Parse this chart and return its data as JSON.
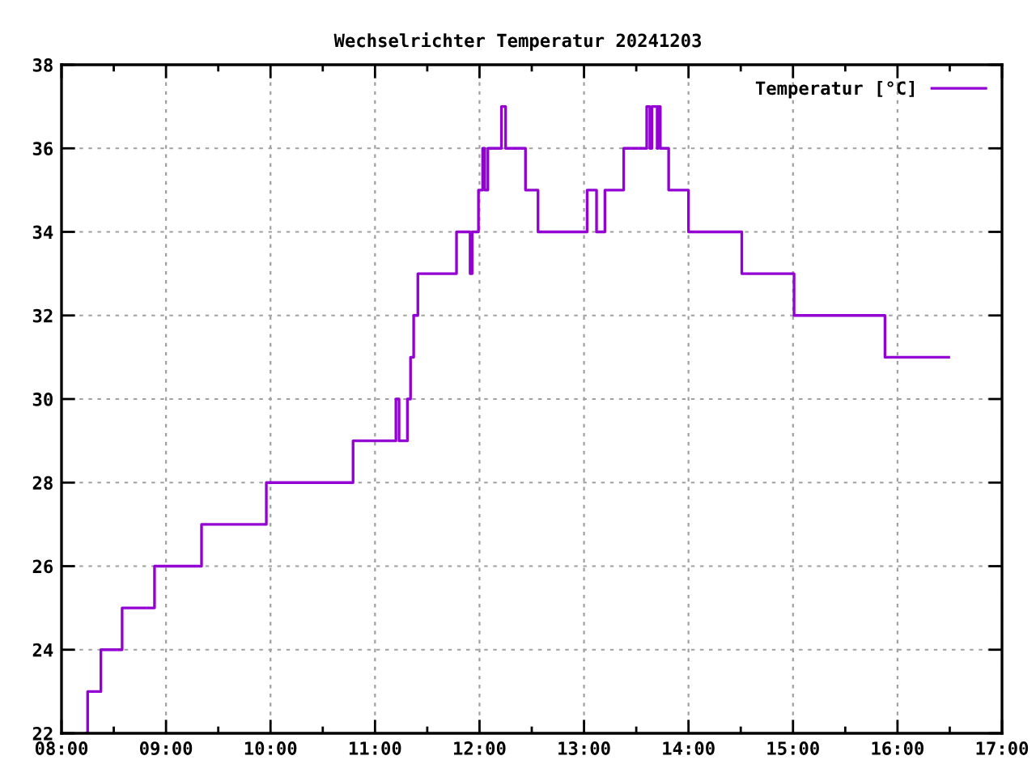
{
  "chart_data": {
    "type": "step",
    "title": "Wechselrichter Temperatur 20241203",
    "x": [
      8.24,
      8.25,
      8.377,
      8.58,
      8.89,
      9.34,
      9.96,
      10.79,
      11.2,
      11.23,
      11.31,
      11.34,
      11.37,
      11.41,
      11.78,
      11.91,
      11.93,
      11.99,
      12.03,
      12.05,
      12.08,
      12.21,
      12.25,
      12.44,
      12.56,
      13.03,
      13.12,
      13.2,
      13.38,
      13.6,
      13.63,
      13.65,
      13.7,
      13.71,
      13.73,
      13.81,
      14.0,
      14.51,
      15.01,
      15.88,
      16.49
    ],
    "series": [
      {
        "name": "Temperatur [°C]",
        "color": "#9400d3",
        "values": [
          22,
          23,
          24,
          25,
          26,
          27,
          28,
          29,
          30,
          29,
          30,
          31,
          32,
          33,
          34,
          33,
          34,
          35,
          36,
          35,
          36,
          37,
          36,
          35,
          34,
          35,
          34,
          35,
          36,
          37,
          36,
          37,
          36,
          37,
          36,
          35,
          34,
          33,
          32,
          31,
          31
        ]
      }
    ],
    "xlim": [
      8,
      17
    ],
    "xticks": [
      {
        "value": 8,
        "label": "08:00"
      },
      {
        "value": 9,
        "label": "09:00"
      },
      {
        "value": 10,
        "label": "10:00"
      },
      {
        "value": 11,
        "label": "11:00"
      },
      {
        "value": 12,
        "label": "12:00"
      },
      {
        "value": 13,
        "label": "13:00"
      },
      {
        "value": 14,
        "label": "14:00"
      },
      {
        "value": 15,
        "label": "15:00"
      },
      {
        "value": 16,
        "label": "16:00"
      },
      {
        "value": 17,
        "label": "17:00"
      }
    ],
    "ylim": [
      22,
      38
    ],
    "yticks": [
      22,
      24,
      26,
      28,
      30,
      32,
      34,
      36,
      38
    ],
    "grid": true,
    "legend": "top right",
    "line_style": "solid"
  }
}
